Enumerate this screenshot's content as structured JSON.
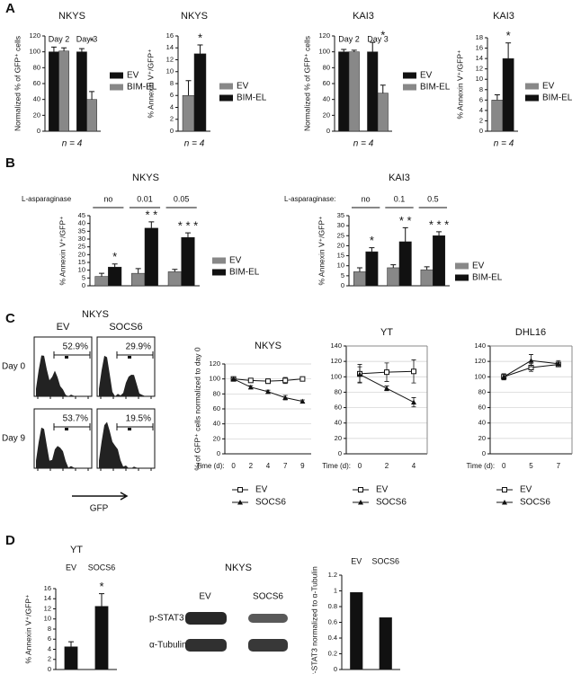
{
  "panel_labels": [
    "A",
    "B",
    "C",
    "D"
  ],
  "chart_data": [
    {
      "type": "bar",
      "title": "NKYS",
      "ylabel": "Normalized % of GFP⁺ cells",
      "categories": [
        "Day 2",
        "Day 3"
      ],
      "series": [
        {
          "name": "EV",
          "color": "#111111",
          "values": [
            100,
            100
          ],
          "errors": [
            6,
            4
          ]
        },
        {
          "name": "BIM-EL",
          "color": "#888888",
          "values": [
            101,
            40
          ],
          "errors": [
            4,
            10
          ]
        }
      ],
      "significance": [
        null,
        "*"
      ],
      "ylim": [
        0,
        120
      ],
      "yticks": [
        0,
        20,
        40,
        60,
        80,
        100,
        120
      ],
      "note": "n = 4"
    },
    {
      "type": "bar",
      "title": "NKYS",
      "ylabel": "% Annexin V⁺/GFP⁺",
      "categories": [
        null
      ],
      "series": [
        {
          "name": "EV",
          "color": "#888888",
          "values": [
            6
          ],
          "errors": [
            2.5
          ]
        },
        {
          "name": "BIM-EL",
          "color": "#111111",
          "values": [
            13
          ],
          "errors": [
            1.5
          ]
        }
      ],
      "significance": [
        "*"
      ],
      "ylim": [
        0,
        16
      ],
      "yticks": [
        0,
        2,
        4,
        6,
        8,
        10,
        12,
        14,
        16
      ],
      "note": "n = 4"
    },
    {
      "type": "bar",
      "title": "KAI3",
      "ylabel": "Normalized % of GFP⁺ cells",
      "categories": [
        "Day 2",
        "Day 3"
      ],
      "series": [
        {
          "name": "EV",
          "color": "#111111",
          "values": [
            100,
            100
          ],
          "errors": [
            3,
            12
          ]
        },
        {
          "name": "BIM-EL",
          "color": "#888888",
          "values": [
            100,
            48
          ],
          "errors": [
            2,
            10
          ]
        }
      ],
      "significance": [
        null,
        "*"
      ],
      "ylim": [
        0,
        120
      ],
      "yticks": [
        0,
        20,
        40,
        60,
        80,
        100,
        120
      ],
      "note": "n = 4"
    },
    {
      "type": "bar",
      "title": "KAI3",
      "ylabel": "% Annexin V⁺/GFP⁺",
      "categories": [
        null
      ],
      "series": [
        {
          "name": "EV",
          "color": "#888888",
          "values": [
            6
          ],
          "errors": [
            1
          ]
        },
        {
          "name": "BIM-EL",
          "color": "#111111",
          "values": [
            14
          ],
          "errors": [
            3
          ]
        }
      ],
      "significance": [
        "*"
      ],
      "ylim": [
        0,
        18
      ],
      "yticks": [
        0,
        2,
        4,
        6,
        8,
        10,
        12,
        14,
        16,
        18
      ],
      "note": "n = 4"
    },
    {
      "type": "bar",
      "title": "NKYS",
      "ylabel": "% Annexin V⁺/GFP⁺",
      "category_label": "L-asparaginase",
      "categories": [
        "no",
        "0.01",
        "0.05"
      ],
      "series": [
        {
          "name": "EV",
          "color": "#888888",
          "values": [
            6,
            8,
            9
          ],
          "errors": [
            2,
            3,
            1.5
          ]
        },
        {
          "name": "BIM-EL",
          "color": "#111111",
          "values": [
            12,
            37,
            31
          ],
          "errors": [
            2,
            4,
            3
          ]
        }
      ],
      "significance": [
        "*",
        "* *",
        "* * *"
      ],
      "ylim": [
        0,
        45
      ],
      "yticks": [
        0,
        5,
        10,
        15,
        20,
        25,
        30,
        35,
        40,
        45
      ]
    },
    {
      "type": "bar",
      "title": "KAI3",
      "ylabel": "% Annexin V⁺/GFP⁺",
      "category_label": "L-asparaginase:",
      "categories": [
        "no",
        "0.1",
        "0.5"
      ],
      "series": [
        {
          "name": "EV",
          "color": "#888888",
          "values": [
            7,
            9,
            8
          ],
          "errors": [
            2,
            1.5,
            1.5
          ]
        },
        {
          "name": "BIM-EL",
          "color": "#111111",
          "values": [
            17,
            22,
            25
          ],
          "errors": [
            2,
            7,
            2
          ]
        }
      ],
      "significance": [
        "*",
        "* *",
        "* * *"
      ],
      "ylim": [
        0,
        35
      ],
      "yticks": [
        0,
        5,
        10,
        15,
        20,
        25,
        30,
        35
      ]
    },
    {
      "type": "line",
      "title": "NKYS",
      "ylabel": "% of GFP⁺ cells normalized to day 0",
      "xlabel": "Time (d):",
      "categories": [
        "0",
        "2",
        "4",
        "7",
        "9"
      ],
      "series": [
        {
          "name": "EV",
          "color": "#111111",
          "marker": "square",
          "values": [
            100,
            98,
            97,
            98,
            100
          ],
          "errors": [
            2,
            2,
            3,
            4,
            2
          ]
        },
        {
          "name": "SOCS6",
          "color": "#111111",
          "marker": "triangle",
          "values": [
            100,
            89,
            83,
            75,
            70
          ],
          "errors": [
            1,
            2,
            2,
            3,
            2
          ]
        }
      ],
      "ylim": [
        0,
        120
      ],
      "yticks": [
        0,
        20,
        40,
        60,
        80,
        100,
        120
      ],
      "grid": true,
      "frame": false
    },
    {
      "type": "line",
      "title": "YT",
      "xlabel": "Time (d):",
      "categories": [
        "0",
        "2",
        "4"
      ],
      "series": [
        {
          "name": "EV",
          "color": "#111111",
          "marker": "square",
          "values": [
            104,
            106,
            107
          ],
          "errors": [
            12,
            12,
            15
          ]
        },
        {
          "name": "SOCS6",
          "color": "#111111",
          "marker": "triangle",
          "values": [
            103,
            85,
            67
          ],
          "errors": [
            10,
            3,
            6
          ]
        }
      ],
      "ylim": [
        0,
        140
      ],
      "yticks": [
        0,
        20,
        40,
        60,
        80,
        100,
        120,
        140
      ],
      "grid": true,
      "frame": true
    },
    {
      "type": "line",
      "title": "DHL16",
      "xlabel": "Time (d):",
      "categories": [
        "0",
        "5",
        "7"
      ],
      "series": [
        {
          "name": "EV",
          "color": "#111111",
          "marker": "square",
          "values": [
            100,
            112,
            116
          ],
          "errors": [
            3,
            5,
            3
          ]
        },
        {
          "name": "SOCS6",
          "color": "#111111",
          "marker": "triangle",
          "values": [
            100,
            121,
            117
          ],
          "errors": [
            4,
            8,
            4
          ]
        }
      ],
      "ylim": [
        0,
        140
      ],
      "yticks": [
        0,
        20,
        40,
        60,
        80,
        100,
        120,
        140
      ],
      "grid": true,
      "frame": true
    },
    {
      "type": "bar",
      "title": "YT",
      "ylabel": "% Annexin V⁺/GFP⁺",
      "categories": [
        "EV",
        "SOCS6"
      ],
      "values": [
        4.5,
        12.5
      ],
      "errors": [
        1,
        2.5
      ],
      "color": "#111111",
      "significance": [
        null,
        "*"
      ],
      "ylim": [
        0,
        16
      ],
      "yticks": [
        0,
        2,
        4,
        6,
        8,
        10,
        12,
        14,
        16
      ]
    },
    {
      "type": "bar",
      "ylabel": "P-STAT3 normalized to α-Tubulin",
      "categories": [
        "EV",
        "SOCS6"
      ],
      "values": [
        0.98,
        0.66
      ],
      "color": "#111111",
      "ylim": [
        0,
        1.2
      ],
      "yticks": [
        0,
        0.2,
        0.4,
        0.6,
        0.8,
        1,
        1.2
      ]
    }
  ],
  "flow_panel": {
    "title": "NKYS",
    "columns": [
      "EV",
      "SOCS6"
    ],
    "rows": [
      "Day 0",
      "Day 9"
    ],
    "gates": [
      [
        "52.9%",
        "29.9%"
      ],
      [
        "53.7%",
        "19.5%"
      ]
    ],
    "x_label": "GFP"
  },
  "western_blot": {
    "title": "NKYS",
    "columns": [
      "EV",
      "SOCS6"
    ],
    "rows": [
      "p-STAT3",
      "α-Tubulin"
    ]
  }
}
